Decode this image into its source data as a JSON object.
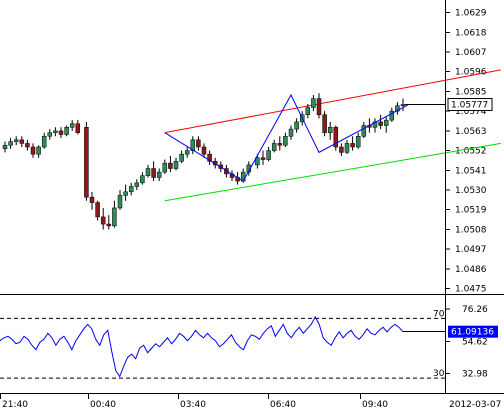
{
  "chart_data": [
    {
      "type": "candlestick",
      "panel": "price",
      "title": "",
      "xlabel": "",
      "ylabel": "",
      "ylim": [
        1.0472,
        1.0636
      ],
      "y_ticks": [
        "1.0629",
        "1.0618",
        "1.0607",
        "1.0596",
        "1.0585",
        "1.0574",
        "1.0563",
        "1.0552",
        "1.0541",
        "1.0530",
        "1.0519",
        "1.0508",
        "1.0497",
        "1.0486",
        "1.0475"
      ],
      "current_price": "1.05777",
      "colors": {
        "up": "#2e8b57",
        "down": "#8b1a1a",
        "wick": "#000000",
        "channel_upper": "#ff0000",
        "channel_lower": "#00dd00",
        "zigzag": "#0000ff",
        "price_line": "#000000"
      },
      "candles": [
        [
          1.0553,
          1.0557,
          1.0551,
          1.0555
        ],
        [
          1.0555,
          1.0559,
          1.0553,
          1.0557
        ],
        [
          1.0557,
          1.056,
          1.0555,
          1.0558
        ],
        [
          1.0558,
          1.056,
          1.0554,
          1.0556
        ],
        [
          1.0556,
          1.0558,
          1.0552,
          1.0554
        ],
        [
          1.0554,
          1.0556,
          1.0548,
          1.055
        ],
        [
          1.055,
          1.0555,
          1.0548,
          1.0554
        ],
        [
          1.0554,
          1.0562,
          1.0553,
          1.056
        ],
        [
          1.056,
          1.0564,
          1.0558,
          1.0562
        ],
        [
          1.0562,
          1.0565,
          1.056,
          1.0563
        ],
        [
          1.0563,
          1.0565,
          1.0559,
          1.0561
        ],
        [
          1.0561,
          1.0566,
          1.056,
          1.0565
        ],
        [
          1.0565,
          1.0569,
          1.0563,
          1.0567
        ],
        [
          1.0567,
          1.0569,
          1.0561,
          1.0562
        ],
        [
          1.0565,
          1.0568,
          1.0524,
          1.0526
        ],
        [
          1.0526,
          1.0529,
          1.0519,
          1.0523
        ],
        [
          1.0523,
          1.0524,
          1.0513,
          1.0515
        ],
        [
          1.0515,
          1.052,
          1.0508,
          1.0511
        ],
        [
          1.0511,
          1.0516,
          1.0508,
          1.051
        ],
        [
          1.051,
          1.0524,
          1.0509,
          1.052
        ],
        [
          1.052,
          1.053,
          1.0519,
          1.0527
        ],
        [
          1.0527,
          1.0533,
          1.0524,
          1.0529
        ],
        [
          1.0529,
          1.0534,
          1.0527,
          1.0532
        ],
        [
          1.0532,
          1.0536,
          1.053,
          1.0534
        ],
        [
          1.0534,
          1.054,
          1.0533,
          1.0538
        ],
        [
          1.0538,
          1.0544,
          1.0537,
          1.0542
        ],
        [
          1.0542,
          1.0546,
          1.0535,
          1.0537
        ],
        [
          1.0537,
          1.0542,
          1.0535,
          1.054
        ],
        [
          1.054,
          1.0547,
          1.0539,
          1.0545
        ],
        [
          1.0545,
          1.0549,
          1.054,
          1.0542
        ],
        [
          1.0542,
          1.0548,
          1.0541,
          1.0546
        ],
        [
          1.0546,
          1.0552,
          1.0545,
          1.055
        ],
        [
          1.055,
          1.0554,
          1.0548,
          1.0552
        ],
        [
          1.0552,
          1.056,
          1.055,
          1.0558
        ],
        [
          1.0558,
          1.056,
          1.0552,
          1.0554
        ],
        [
          1.0554,
          1.0556,
          1.0548,
          1.055
        ],
        [
          1.055,
          1.0552,
          1.0544,
          1.0546
        ],
        [
          1.0546,
          1.0548,
          1.0542,
          1.0544
        ],
        [
          1.0544,
          1.0546,
          1.054,
          1.0542
        ],
        [
          1.0542,
          1.0544,
          1.0537,
          1.0539
        ],
        [
          1.0539,
          1.0541,
          1.0535,
          1.0537
        ],
        [
          1.0537,
          1.054,
          1.0533,
          1.0535
        ],
        [
          1.0535,
          1.0542,
          1.0534,
          1.054
        ],
        [
          1.054,
          1.0546,
          1.0538,
          1.0544
        ],
        [
          1.0544,
          1.055,
          1.0542,
          1.0548
        ],
        [
          1.0548,
          1.0552,
          1.0544,
          1.0547
        ],
        [
          1.0547,
          1.0554,
          1.0546,
          1.0552
        ],
        [
          1.0552,
          1.0558,
          1.0551,
          1.0556
        ],
        [
          1.0556,
          1.056,
          1.0552,
          1.0555
        ],
        [
          1.0555,
          1.0562,
          1.0554,
          1.056
        ],
        [
          1.056,
          1.0566,
          1.0558,
          1.0564
        ],
        [
          1.0564,
          1.057,
          1.0562,
          1.0568
        ],
        [
          1.0568,
          1.0574,
          1.0566,
          1.0572
        ],
        [
          1.0572,
          1.0578,
          1.057,
          1.0576
        ],
        [
          1.0576,
          1.0583,
          1.0574,
          1.0581
        ],
        [
          1.0581,
          1.0584,
          1.057,
          1.0572
        ],
        [
          1.0572,
          1.0574,
          1.056,
          1.0562
        ],
        [
          1.0562,
          1.0568,
          1.0558,
          1.0565
        ],
        [
          1.0565,
          1.0566,
          1.0552,
          1.0554
        ],
        [
          1.0554,
          1.0556,
          1.0549,
          1.0551
        ],
        [
          1.0551,
          1.0558,
          1.055,
          1.0556
        ],
        [
          1.0556,
          1.056,
          1.0552,
          1.0554
        ],
        [
          1.0554,
          1.0562,
          1.0553,
          1.056
        ],
        [
          1.056,
          1.0568,
          1.0559,
          1.0566
        ],
        [
          1.0566,
          1.057,
          1.0562,
          1.0565
        ],
        [
          1.0565,
          1.057,
          1.0562,
          1.0568
        ],
        [
          1.0568,
          1.0572,
          1.0564,
          1.0566
        ],
        [
          1.0566,
          1.0571,
          1.0562,
          1.0569
        ],
        [
          1.0569,
          1.0576,
          1.0568,
          1.0574
        ],
        [
          1.0574,
          1.0579,
          1.0572,
          1.0577
        ],
        [
          1.0577,
          1.0581,
          1.0574,
          1.05777
        ]
      ],
      "zigzag": [
        [
          0,
          1.0562
        ],
        [
          9,
          1.0535
        ],
        [
          14,
          1.0583
        ],
        [
          17,
          1.0551
        ],
        [
          27,
          1.05777
        ]
      ],
      "channel_upper": [
        [
          -27,
          1.0562
        ],
        [
          33,
          1.0597
        ]
      ],
      "channel_lower": [
        [
          -27,
          1.0524
        ],
        [
          33,
          1.0556
        ]
      ]
    },
    {
      "type": "line",
      "panel": "oscillator",
      "title": "",
      "ylim": [
        20,
        85
      ],
      "y_ticks": [
        "76.26",
        "54.62",
        "32.98"
      ],
      "levels": [
        "70",
        "30"
      ],
      "current_value": "61.09136",
      "colors": {
        "line": "#0000ff",
        "current_label_bg": "#0000ff",
        "levels": "#000000"
      },
      "values": [
        55,
        57,
        58,
        56,
        53,
        54,
        58,
        56,
        52,
        49,
        54,
        56,
        60,
        57,
        52,
        56,
        58,
        54,
        49,
        55,
        59,
        63,
        66,
        63,
        56,
        52,
        59,
        62,
        48,
        35,
        31,
        38,
        44,
        46,
        43,
        50,
        52,
        47,
        50,
        53,
        51,
        54,
        57,
        53,
        56,
        60,
        58,
        55,
        58,
        62,
        59,
        57,
        60,
        57,
        55,
        51,
        53,
        56,
        59,
        54,
        51,
        49,
        55,
        59,
        58,
        56,
        60,
        63,
        65,
        58,
        62,
        66,
        60,
        57,
        61,
        64,
        60,
        63,
        66,
        71,
        66,
        57,
        54,
        52,
        57,
        61,
        57,
        60,
        62,
        58,
        56,
        59,
        63,
        60,
        59,
        62,
        64,
        61,
        64,
        66,
        64,
        61
      ]
    }
  ],
  "time_axis": {
    "labels": [
      "21:40",
      "00:40",
      "03:40",
      "06:40",
      "09:40"
    ],
    "date_label": "2012-03-07"
  }
}
